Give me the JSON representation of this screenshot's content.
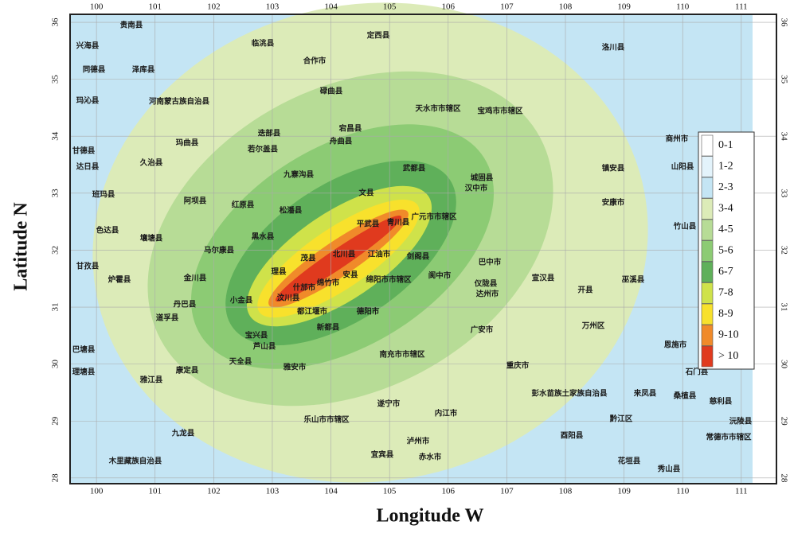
{
  "map": {
    "xlabel": "Longitude W",
    "ylabel": "Latitude N",
    "xlim": [
      99.55,
      111.6
    ],
    "ylim": [
      27.9,
      36.14
    ],
    "xticks": [
      100,
      101,
      102,
      103,
      104,
      105,
      106,
      107,
      108,
      109,
      110,
      111
    ],
    "yticks": [
      28,
      29,
      30,
      31,
      32,
      33,
      34,
      35,
      36
    ],
    "grid": true,
    "legend": [
      {
        "label": "0-1",
        "color": "#ffffff"
      },
      {
        "label": "1-2",
        "color": "#e3f3fb"
      },
      {
        "label": "2-3",
        "color": "#c4e5f4"
      },
      {
        "label": "3-4",
        "color": "#dcebb8"
      },
      {
        "label": "4-5",
        "color": "#b7dc96"
      },
      {
        "label": "5-6",
        "color": "#8ccb74"
      },
      {
        "label": "6-7",
        "color": "#5fb05a"
      },
      {
        "label": "7-8",
        "color": "#cfe24a"
      },
      {
        "label": "8-9",
        "color": "#f8e12c"
      },
      {
        "label": "9-10",
        "color": "#f08a2a"
      },
      {
        "label": "> 10",
        "color": "#e03a1e"
      }
    ],
    "places": [
      "兴海县",
      "贵南县",
      "同德县",
      "泽库县",
      "玛沁县",
      "河南蒙古族自治县",
      "甘德县",
      "玛曲县",
      "久治县",
      "达日县",
      "班玛县",
      "阿坝县",
      "色达县",
      "壤塘县",
      "甘孜县",
      "炉霍县",
      "金川县",
      "丹巴县",
      "道孚县",
      "巴塘县",
      "理塘县",
      "雅江县",
      "康定县",
      "九龙县",
      "木里藏族自治县",
      "若尔盖县",
      "九寨沟县",
      "红原县",
      "松潘县",
      "黑水县",
      "马尔康县",
      "理县",
      "茂县",
      "汶川县",
      "小金县",
      "都江堰市",
      "宝兴县",
      "芦山县",
      "天全县",
      "雅安市",
      "乐山市市辖区",
      "平武县",
      "青川县",
      "文县",
      "广元市市辖区",
      "剑阁县",
      "绵阳市市辖区",
      "江油市",
      "北川县",
      "安县",
      "什邡市",
      "绵竹市",
      "德阳市",
      "新都县",
      "南充市市辖区",
      "巴中市",
      "阆中市",
      "达州市",
      "广安市",
      "万州区",
      "天水市市辖区",
      "宝鸡市市辖区",
      "汉中市",
      "城固县",
      "安康市",
      "商州市",
      "恩施市",
      "石门县",
      "武都县",
      "宕昌县",
      "舟曲县",
      "迭部县",
      "碌曲县",
      "合作市",
      "临洮县",
      "定西县",
      "洛川县",
      "镇安县",
      "山阳县",
      "竹山县",
      "巫溪县",
      "开县",
      "宣汉县",
      "仪陇县",
      "遂宁市",
      "内江市",
      "宜宾县",
      "泸州市",
      "赤水市",
      "酉阳县",
      "黔江区",
      "来凤县",
      "桑植县",
      "慈利县",
      "常德市市辖区",
      "沅陵县",
      "花垣县",
      "秀山县",
      "彭水苗族土家族自治县",
      "重庆市"
    ]
  }
}
